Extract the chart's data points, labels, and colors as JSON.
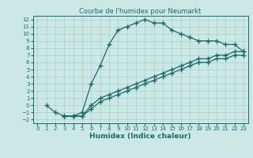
{
  "title": "Courbe de l'humidex pour Neumarkt",
  "xlabel": "Humidex (Indice chaleur)",
  "bg_color": "#cce8e4",
  "grid_color": "#aacfca",
  "line_color": "#1a6b6b",
  "xlim": [
    -0.5,
    23.5
  ],
  "ylim": [
    -2.5,
    12.5
  ],
  "xticks": [
    0,
    1,
    2,
    3,
    4,
    5,
    6,
    7,
    8,
    9,
    10,
    11,
    12,
    13,
    14,
    15,
    16,
    17,
    18,
    19,
    20,
    21,
    22,
    23
  ],
  "yticks": [
    -2,
    -1,
    0,
    1,
    2,
    3,
    4,
    5,
    6,
    7,
    8,
    9,
    10,
    11,
    12
  ],
  "line1_x": [
    1,
    2,
    3,
    4,
    5,
    6,
    7,
    8,
    9,
    10,
    11,
    12,
    13,
    14,
    15,
    16,
    17,
    18,
    19,
    20,
    21,
    22,
    23
  ],
  "line1_y": [
    0,
    -1,
    -1.5,
    -1.5,
    -1.0,
    3.0,
    5.5,
    8.5,
    10.5,
    11.0,
    11.5,
    12.0,
    11.5,
    11.5,
    10.5,
    10.0,
    9.5,
    9.0,
    9.0,
    9.0,
    8.5,
    8.5,
    7.5
  ],
  "line2_x": [
    3,
    4,
    5,
    6,
    7,
    8,
    9,
    10,
    11,
    12,
    13,
    14,
    15,
    16,
    17,
    18,
    19,
    20,
    21,
    22,
    23
  ],
  "line2_y": [
    -1.5,
    -1.5,
    -1.5,
    0.0,
    1.0,
    1.5,
    2.0,
    2.5,
    3.0,
    3.5,
    4.0,
    4.5,
    5.0,
    5.5,
    6.0,
    6.5,
    6.5,
    7.0,
    7.0,
    7.5,
    7.5
  ],
  "line3_x": [
    3,
    4,
    5,
    6,
    7,
    8,
    9,
    10,
    11,
    12,
    13,
    14,
    15,
    16,
    17,
    18,
    19,
    20,
    21,
    22,
    23
  ],
  "line3_y": [
    -1.5,
    -1.5,
    -1.5,
    -0.5,
    0.5,
    1.0,
    1.5,
    2.0,
    2.5,
    3.0,
    3.5,
    4.0,
    4.5,
    5.0,
    5.5,
    6.0,
    6.0,
    6.5,
    6.5,
    7.0,
    7.0
  ],
  "marker_size": 2.5,
  "linewidth": 0.9,
  "title_fontsize": 6,
  "tick_fontsize": 5,
  "xlabel_fontsize": 6.5
}
